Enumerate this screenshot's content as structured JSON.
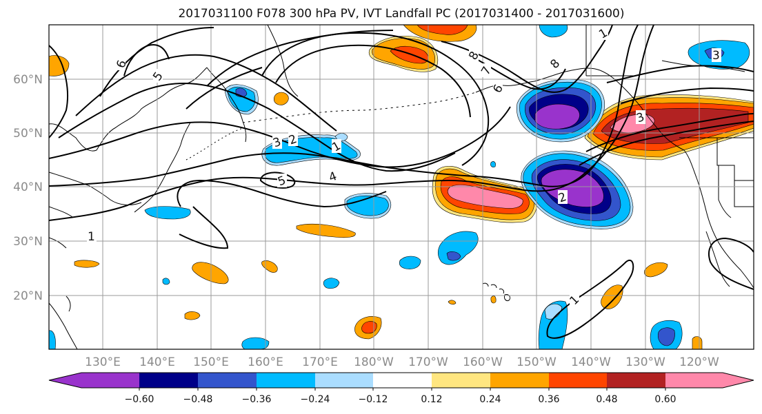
{
  "title": "2017031100 F078 300 hPa PV, IVT Landfall PC (2017031400 - 2017031600)",
  "lat_labels": [
    "60°N",
    "50°N",
    "40°N",
    "30°N",
    "20°N"
  ],
  "lon_labels": [
    "130°E",
    "140°E",
    "150°E",
    "160°E",
    "170°E",
    "180°W",
    "170°W",
    "160°W",
    "150°W",
    "140°W",
    "130°W",
    "120°W"
  ],
  "contour_labels": [
    "6",
    "5",
    "3",
    "2",
    "1",
    "5",
    "4",
    "1",
    "8",
    "7",
    "6",
    "8",
    "2",
    "3",
    "1",
    "1",
    "3"
  ],
  "colorbar": {
    "colors": [
      "#9933cc",
      "#000088",
      "#3355cc",
      "#00bbff",
      "#aaddff",
      "#ffffff",
      "#ffe680",
      "#ffa500",
      "#ff4500",
      "#b22222",
      "#ff88aa"
    ],
    "ticks": [
      "−0.60",
      "−0.48",
      "−0.36",
      "−0.24",
      "−0.12",
      "0.12",
      "0.24",
      "0.36",
      "0.48",
      "0.60"
    ]
  },
  "colors": {
    "pink": "#ff88aa",
    "darkred": "#b22222",
    "red": "#ff4500",
    "orange": "#ffa500",
    "yellow": "#ffe680",
    "purple": "#9933cc",
    "navy": "#000088",
    "blue": "#3355cc",
    "cyan": "#00bbff",
    "lightblue": "#aaddff"
  }
}
